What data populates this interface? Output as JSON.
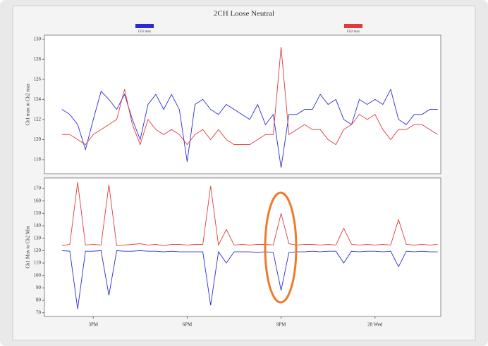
{
  "chart_data": [
    {
      "type": "line",
      "title": "2CH Loose Neutral",
      "ylabel": "Ch1 max to Ch2 max",
      "x": [
        14,
        14.25,
        14.5,
        14.75,
        15,
        15.25,
        15.5,
        15.75,
        16,
        16.25,
        16.5,
        16.75,
        17,
        17.25,
        17.5,
        17.75,
        18,
        18.25,
        18.5,
        18.75,
        19,
        19.25,
        19.5,
        19.75,
        20,
        20.25,
        20.5,
        20.75,
        21,
        21.25,
        21.5,
        21.75,
        22,
        22.25,
        22.5,
        22.75,
        23,
        23.25,
        23.5,
        23.75,
        24,
        24.25,
        24.5,
        24.75,
        25,
        25.25,
        25.5,
        25.75,
        26
      ],
      "series": [
        {
          "name": "Ch1 max",
          "color": "#2a2ad8",
          "values": [
            123,
            122.5,
            121.5,
            119,
            122,
            124.8,
            124,
            123,
            124.5,
            122,
            120,
            123.5,
            124.5,
            123,
            124.5,
            123,
            117.8,
            123.5,
            124,
            123,
            122.5,
            123.5,
            123,
            122.5,
            122,
            123.5,
            121.5,
            122.5,
            117.2,
            122.5,
            122.5,
            123,
            123,
            124.5,
            123.5,
            124,
            122,
            121.5,
            124,
            123.5,
            124,
            123.5,
            125,
            122,
            121.5,
            122.5,
            122.5,
            123,
            123
          ]
        },
        {
          "name": "Ch2 max",
          "color": "#e23a3a",
          "values": [
            120.5,
            120.5,
            120,
            119.5,
            120.5,
            121,
            121.5,
            122,
            125,
            121.5,
            119.5,
            122,
            121,
            120.5,
            121,
            120.5,
            119.5,
            120.5,
            121,
            120,
            121,
            120,
            119.5,
            119.5,
            119.5,
            120,
            120.5,
            120.5,
            129.2,
            120.5,
            121,
            121.5,
            121,
            121,
            120,
            119.5,
            121,
            121.5,
            122.5,
            122,
            122.5,
            121,
            120,
            121,
            121,
            121.5,
            121.5,
            121,
            120.5
          ]
        }
      ],
      "xlim": [
        13.44,
        26.1
      ],
      "ylim": [
        116.6,
        130.4
      ],
      "yticks": [
        118,
        120,
        122,
        124,
        126,
        128,
        130
      ]
    },
    {
      "type": "line",
      "ylabel": "Ch1 Max to Ch2 Min",
      "x": [
        14,
        14.25,
        14.5,
        14.75,
        15,
        15.25,
        15.5,
        15.75,
        16,
        16.25,
        16.5,
        16.75,
        17,
        17.25,
        17.5,
        17.75,
        18,
        18.25,
        18.5,
        18.75,
        19,
        19.25,
        19.5,
        19.75,
        20,
        20.25,
        20.5,
        20.75,
        21,
        21.25,
        21.5,
        21.75,
        22,
        22.25,
        22.5,
        22.75,
        23,
        23.25,
        23.5,
        23.75,
        24,
        24.25,
        24.5,
        24.75,
        25,
        25.25,
        25.5,
        25.75,
        26
      ],
      "series": [
        {
          "color": "#2a2ad8",
          "values": [
            120,
            119.5,
            73,
            119.5,
            119.5,
            120,
            84,
            120,
            119.5,
            119.5,
            120,
            119.5,
            119.5,
            119,
            119.5,
            119,
            119,
            119,
            119,
            76,
            119,
            110,
            119,
            119,
            119,
            118.5,
            119,
            118.5,
            88,
            118.5,
            119,
            119,
            119.5,
            119,
            119.5,
            119.5,
            110,
            119.5,
            119,
            119.5,
            119.5,
            119,
            119.5,
            107,
            119.5,
            119,
            119.5,
            119,
            119
          ]
        },
        {
          "color": "#e23a3a",
          "values": [
            124,
            125,
            175,
            124.5,
            125,
            124.5,
            173,
            124,
            124.5,
            125,
            125.5,
            124.5,
            125,
            124,
            125,
            125,
            124.5,
            125,
            125,
            172,
            124.5,
            137,
            124.5,
            125,
            124.5,
            125,
            125,
            124.5,
            150,
            125.5,
            124.5,
            125,
            125,
            124.5,
            125,
            124.5,
            138,
            125,
            124.5,
            125,
            124.5,
            125,
            124.5,
            145,
            125,
            124.5,
            125,
            124.5,
            125
          ]
        }
      ],
      "xlim": [
        13.44,
        26.1
      ],
      "ylim": [
        67,
        178.5
      ],
      "yticks": [
        70,
        80,
        90,
        100,
        110,
        120,
        130,
        140,
        150,
        160,
        170
      ],
      "xticks": [
        {
          "value": 15,
          "label": "3PM"
        },
        {
          "value": 18,
          "label": "6PM"
        },
        {
          "value": 21,
          "label": "9PM"
        },
        {
          "value": 24,
          "label": "28 Wed"
        }
      ]
    }
  ]
}
